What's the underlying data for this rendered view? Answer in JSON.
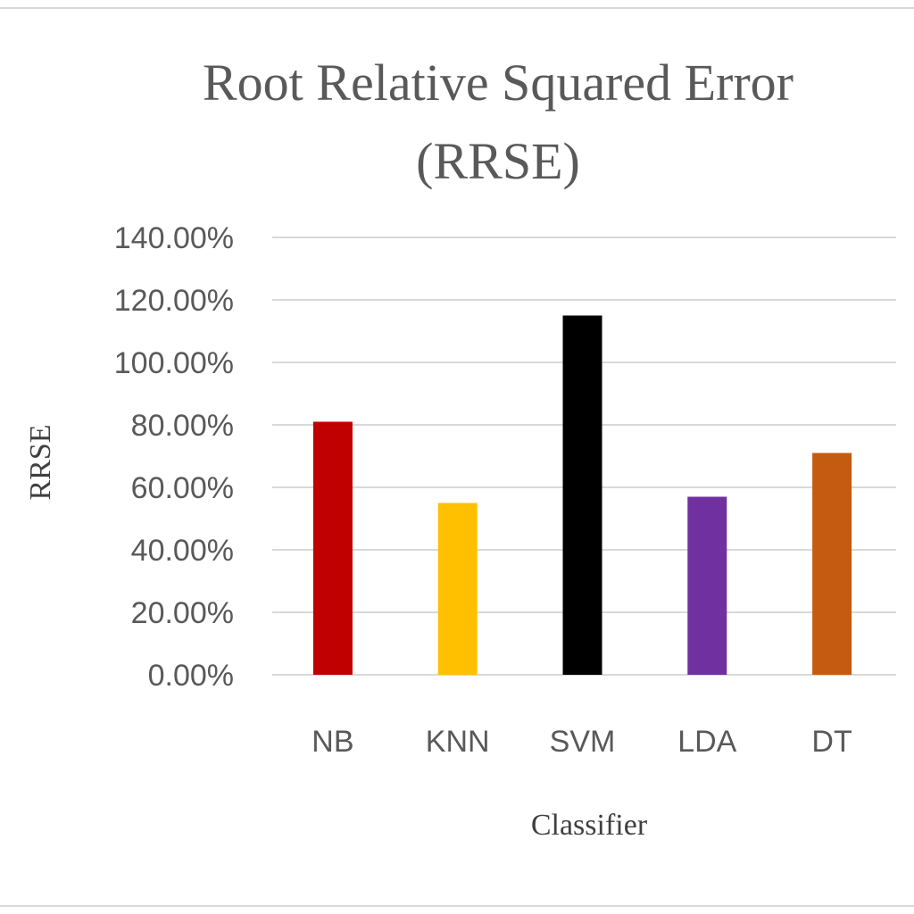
{
  "chart_data": {
    "type": "bar",
    "title": [
      "Root Relative Squared Error",
      "(RRSE)"
    ],
    "xlabel": "Classifier",
    "ylabel": "RRSE",
    "categories": [
      "NB",
      "KNN",
      "SVM",
      "LDA",
      "DT"
    ],
    "values": [
      0.81,
      0.55,
      1.15,
      0.57,
      0.71
    ],
    "colors": [
      "#C00000",
      "#FFC000",
      "#000000",
      "#7030A0",
      "#C55A11"
    ],
    "ylim": [
      0,
      1.4
    ],
    "yticks": [
      0,
      0.2,
      0.4,
      0.6,
      0.8,
      1.0,
      1.2,
      1.4
    ],
    "ytick_labels": [
      "0.00%",
      "20.00%",
      "40.00%",
      "60.00%",
      "80.00%",
      "100.00%",
      "120.00%",
      "140.00%"
    ],
    "grid": true,
    "legend": "none"
  }
}
